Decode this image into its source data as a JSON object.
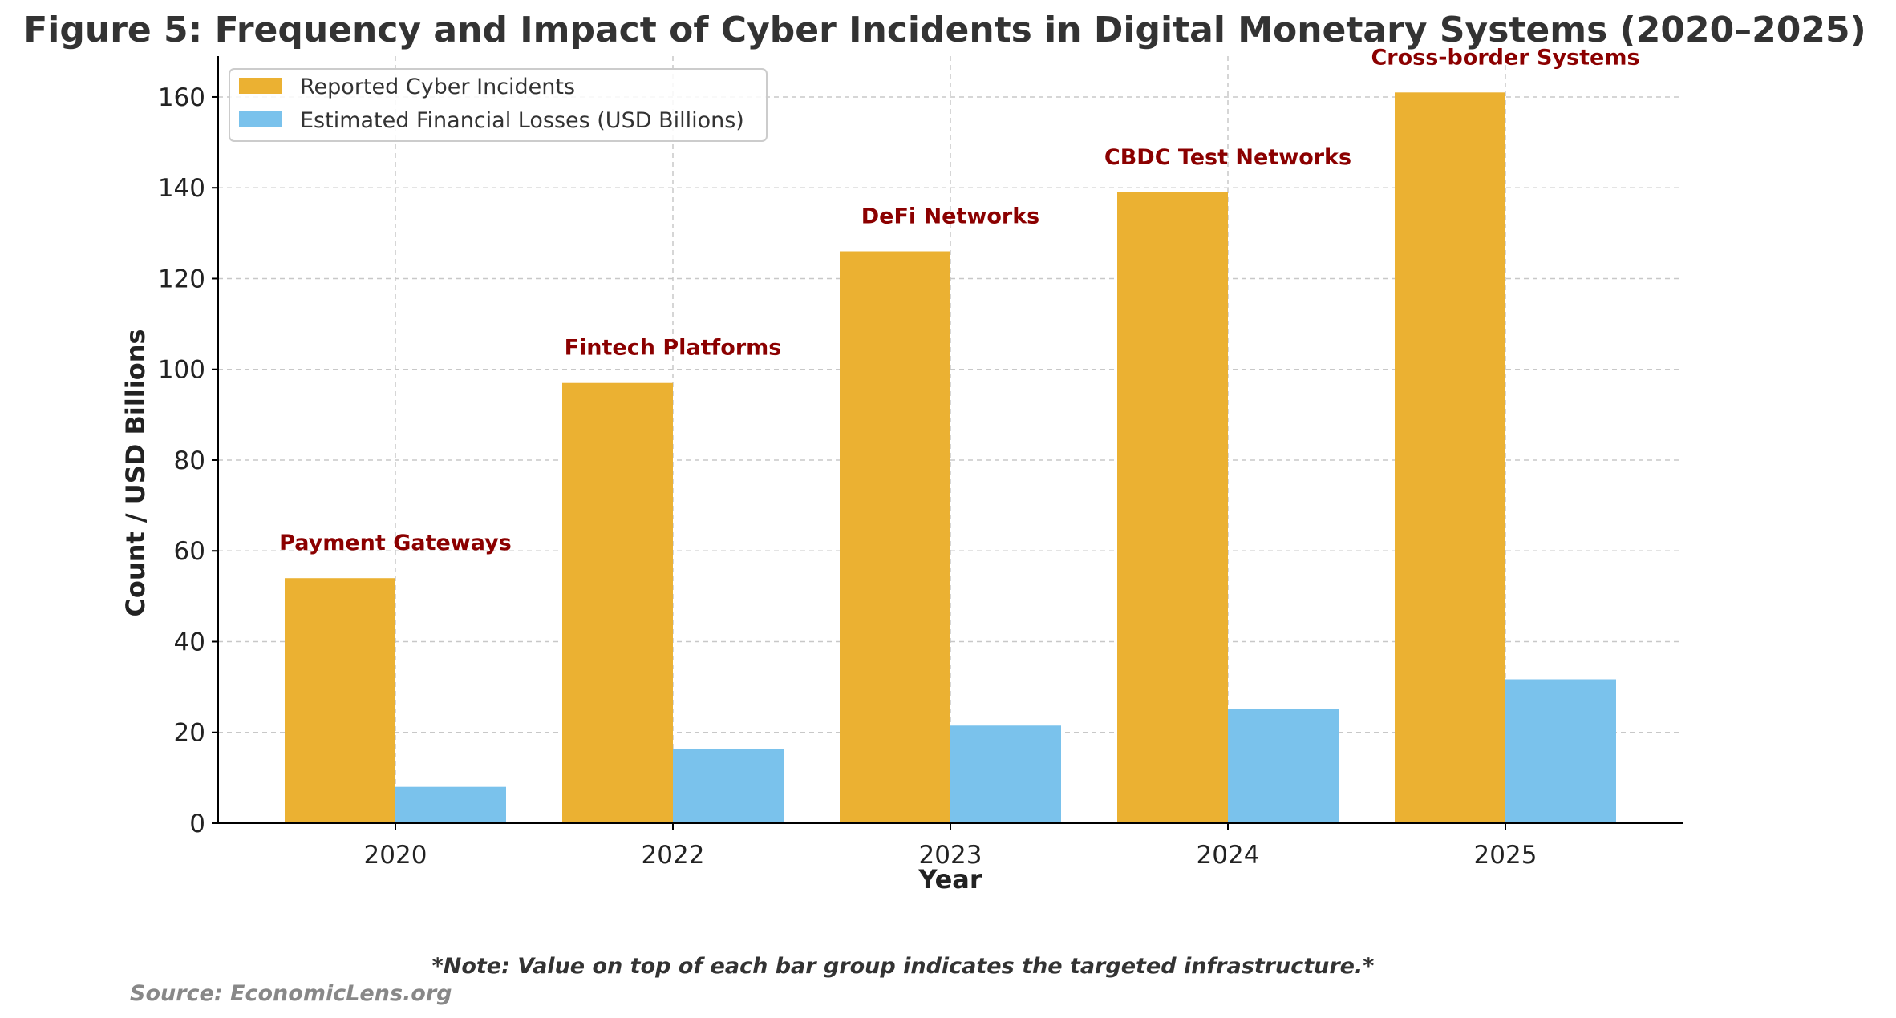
{
  "chart_data": {
    "type": "bar",
    "title": "Figure 5: Frequency and Impact of Cyber Incidents in Digital Monetary Systems (2020–2025)",
    "xlabel": "Year",
    "ylabel": "Count / USD Billions",
    "categories": [
      "2020",
      "2022",
      "2023",
      "2024",
      "2025"
    ],
    "series": [
      {
        "name": "Reported Cyber Incidents",
        "color": "#EBB132",
        "values": [
          54,
          97,
          126,
          139,
          161
        ]
      },
      {
        "name": "Estimated Financial Losses (USD Billions)",
        "color": "#7AC2EC",
        "values": [
          8,
          16.3,
          21.5,
          25.2,
          31.7
        ]
      }
    ],
    "ylim": [
      0,
      169
    ],
    "yticks": [
      0,
      20,
      40,
      60,
      80,
      100,
      120,
      140,
      160
    ],
    "grid": true,
    "legend_position": "top-left",
    "annotations": [
      {
        "category": "2020",
        "text": "Payment Gateways"
      },
      {
        "category": "2022",
        "text": "Fintech Platforms"
      },
      {
        "category": "2023",
        "text": "DeFi Networks"
      },
      {
        "category": "2024",
        "text": "CBDC Test Networks"
      },
      {
        "category": "2025",
        "text": "Cross-border Systems"
      }
    ],
    "annotation_color": "#8B0000"
  },
  "note": "*Note: Value on top of each bar group indicates the targeted infrastructure.*",
  "source": "Source: EconomicLens.org"
}
